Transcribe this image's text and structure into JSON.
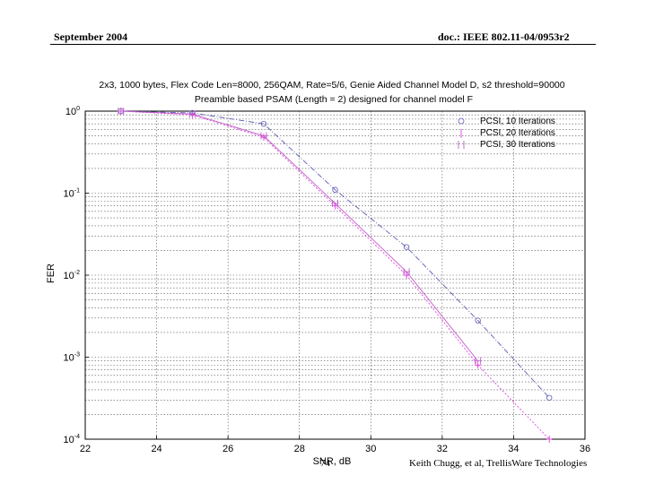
{
  "header": {
    "left": "September 2004",
    "right": "doc.: IEEE 802.11-04/0953r2"
  },
  "footer": {
    "page": "74",
    "right": "Keith Chugg, et al, TrellisWare Technologies"
  },
  "colors": {
    "series1": "#5a5ab4",
    "series2": "#e040e0",
    "series3": "#c060c8",
    "grid": "#555555"
  },
  "chart_data": {
    "type": "line",
    "title": "2x3, 1000 bytes, Flex Code Len=8000, 256QAM, Rate=5/6, Genie Aided Channel Model D, s2 threshold=90000",
    "subtitle": "Preamble based PSAM (Length = 2) designed for channel model F",
    "xlabel": "SNR, dB",
    "ylabel": "FER",
    "xlim": [
      22,
      36
    ],
    "ylim": [
      0.0001,
      1
    ],
    "yscale": "log",
    "grid": true,
    "legend_position": "top-right",
    "x_ticks": [
      "22",
      "24",
      "26",
      "28",
      "30",
      "32",
      "34",
      "36"
    ],
    "y_ticks": [
      {
        "base": "10",
        "exp": "0",
        "value": 1
      },
      {
        "base": "10",
        "exp": "-1",
        "value": 0.1
      },
      {
        "base": "10",
        "exp": "-2",
        "value": 0.01
      },
      {
        "base": "10",
        "exp": "-3",
        "value": 0.001
      },
      {
        "base": "10",
        "exp": "-4",
        "value": 0.0001
      }
    ],
    "series": [
      {
        "name": "PCSI, 10 Iterations",
        "marker": "circle",
        "dash": "6,2,1,2",
        "x": [
          23,
          25,
          27,
          29,
          31,
          33,
          35
        ],
        "values": [
          1.0,
          0.95,
          0.7,
          0.11,
          0.022,
          0.0028,
          0.00032
        ]
      },
      {
        "name": "PCSI, 20 Iterations",
        "marker": "plus",
        "dash": "2,2",
        "x": [
          23,
          25,
          27,
          29,
          31,
          33,
          35
        ],
        "values": [
          1.0,
          0.9,
          0.48,
          0.07,
          0.01,
          0.0008,
          0.0001
        ]
      },
      {
        "name": "PCSI, 30 Iterations",
        "marker": "star",
        "dash": "",
        "x": [
          23,
          25,
          27,
          29,
          31,
          33
        ],
        "values": [
          1.0,
          0.92,
          0.5,
          0.075,
          0.011,
          0.0009
        ]
      }
    ]
  }
}
